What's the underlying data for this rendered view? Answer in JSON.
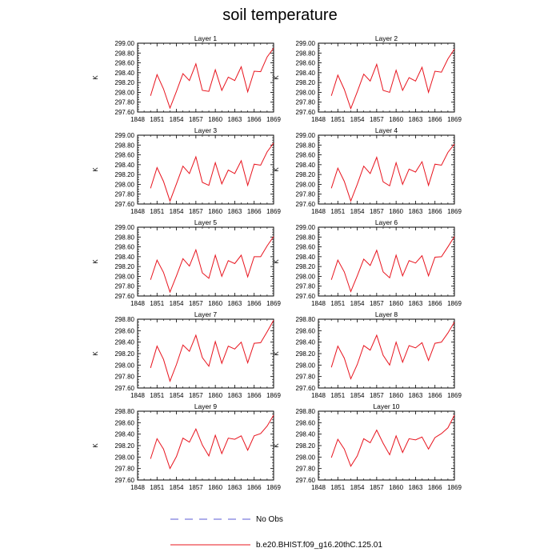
{
  "page_title": "soil temperature",
  "chart_data": {
    "type": "line",
    "xlabel": "",
    "ylabel": "K",
    "xlim": [
      1848,
      1869
    ],
    "x_ticks": [
      1848,
      1851,
      1854,
      1857,
      1860,
      1863,
      1866,
      1869
    ],
    "x": [
      1850,
      1851,
      1852,
      1853,
      1854,
      1855,
      1856,
      1857,
      1858,
      1859,
      1860,
      1861,
      1862,
      1863,
      1864,
      1865,
      1866,
      1867,
      1868,
      1869
    ],
    "grid": false,
    "line_color": "#e8141e",
    "panels": [
      {
        "title": "Layer 1",
        "ylim": [
          297.6,
          299.0
        ],
        "y_ticks": [
          "297.60",
          "297.80",
          "298.00",
          "298.20",
          "298.40",
          "298.60",
          "298.80",
          "299.00"
        ],
        "values": [
          297.93,
          298.36,
          298.07,
          297.68,
          298.02,
          298.38,
          298.24,
          298.58,
          298.04,
          298.02,
          298.46,
          298.04,
          298.31,
          298.24,
          298.52,
          298.01,
          298.43,
          298.42,
          298.72,
          298.9
        ]
      },
      {
        "title": "Layer 2",
        "ylim": [
          297.6,
          299.0
        ],
        "y_ticks": [
          "297.60",
          "297.80",
          "298.00",
          "298.20",
          "298.40",
          "298.60",
          "298.80",
          "299.00"
        ],
        "values": [
          297.93,
          298.35,
          298.06,
          297.67,
          298.01,
          298.37,
          298.23,
          298.57,
          298.04,
          298.0,
          298.45,
          298.04,
          298.3,
          298.23,
          298.51,
          298.0,
          298.43,
          298.41,
          298.68,
          298.88
        ]
      },
      {
        "title": "Layer 3",
        "ylim": [
          297.6,
          299.0
        ],
        "y_ticks": [
          "297.60",
          "297.80",
          "298.00",
          "298.20",
          "298.40",
          "298.60",
          "298.80",
          "299.00"
        ],
        "values": [
          297.92,
          298.34,
          298.06,
          297.66,
          298.01,
          298.37,
          298.22,
          298.56,
          298.04,
          297.98,
          298.44,
          298.01,
          298.29,
          298.22,
          298.48,
          297.98,
          298.41,
          298.39,
          298.66,
          298.84
        ]
      },
      {
        "title": "Layer 4",
        "ylim": [
          297.6,
          299.0
        ],
        "y_ticks": [
          "297.60",
          "297.80",
          "298.00",
          "298.20",
          "298.40",
          "298.60",
          "298.80",
          "299.00"
        ],
        "values": [
          297.92,
          298.33,
          298.06,
          297.66,
          298.0,
          298.37,
          298.22,
          298.55,
          298.05,
          297.97,
          298.44,
          298.0,
          298.31,
          298.25,
          298.46,
          297.98,
          298.41,
          298.39,
          298.65,
          298.82
        ]
      },
      {
        "title": "Layer 5",
        "ylim": [
          297.6,
          299.0
        ],
        "y_ticks": [
          "297.60",
          "297.80",
          "298.00",
          "298.20",
          "298.40",
          "298.60",
          "298.80",
          "299.00"
        ],
        "values": [
          297.93,
          298.33,
          298.08,
          297.68,
          298.01,
          298.36,
          298.21,
          298.54,
          298.07,
          297.96,
          298.43,
          298.0,
          298.32,
          298.26,
          298.43,
          297.99,
          298.4,
          298.4,
          298.62,
          298.81
        ]
      },
      {
        "title": "Layer 6",
        "ylim": [
          297.6,
          299.0
        ],
        "y_ticks": [
          "297.60",
          "297.80",
          "298.00",
          "298.20",
          "298.40",
          "298.60",
          "298.80",
          "299.00"
        ],
        "values": [
          297.93,
          298.33,
          298.09,
          297.69,
          298.01,
          298.35,
          298.22,
          298.53,
          298.09,
          297.97,
          298.43,
          298.01,
          298.32,
          298.27,
          298.42,
          298.01,
          298.39,
          298.4,
          298.6,
          298.81
        ]
      },
      {
        "title": "Layer 7",
        "ylim": [
          297.6,
          298.8
        ],
        "y_ticks": [
          "297.60",
          "297.80",
          "298.00",
          "298.20",
          "298.40",
          "298.60",
          "298.80"
        ],
        "values": [
          297.95,
          298.33,
          298.1,
          297.72,
          298.01,
          298.35,
          298.24,
          298.52,
          298.13,
          297.98,
          298.41,
          298.03,
          298.33,
          298.28,
          298.4,
          298.04,
          298.38,
          298.39,
          298.58,
          298.78
        ]
      },
      {
        "title": "Layer 8",
        "ylim": [
          297.6,
          298.8
        ],
        "y_ticks": [
          "297.60",
          "297.80",
          "298.00",
          "298.20",
          "298.40",
          "298.60",
          "298.80"
        ],
        "values": [
          297.96,
          298.33,
          298.12,
          297.76,
          298.01,
          298.34,
          298.26,
          298.52,
          298.17,
          298.0,
          298.4,
          298.05,
          298.34,
          298.3,
          298.39,
          298.08,
          298.38,
          298.4,
          298.56,
          298.75
        ]
      },
      {
        "title": "Layer 9",
        "ylim": [
          297.6,
          298.8
        ],
        "y_ticks": [
          "297.60",
          "297.80",
          "298.00",
          "298.20",
          "298.40",
          "298.60",
          "298.80"
        ],
        "values": [
          297.97,
          298.32,
          298.14,
          297.8,
          298.01,
          298.33,
          298.26,
          298.49,
          298.21,
          298.02,
          298.38,
          298.06,
          298.33,
          298.31,
          298.37,
          298.12,
          298.37,
          298.41,
          298.54,
          298.73
        ]
      },
      {
        "title": "Layer 10",
        "ylim": [
          297.6,
          298.8
        ],
        "y_ticks": [
          "297.60",
          "297.80",
          "298.00",
          "298.20",
          "298.40",
          "298.60",
          "298.80"
        ],
        "values": [
          297.99,
          298.31,
          298.14,
          297.84,
          298.02,
          298.32,
          298.25,
          298.47,
          298.24,
          298.04,
          298.37,
          298.08,
          298.32,
          298.3,
          298.35,
          298.14,
          298.34,
          298.41,
          298.51,
          298.73
        ]
      }
    ],
    "legend_position": "bottom",
    "legend": [
      {
        "label": "No Obs",
        "style": "dashed",
        "color": "#5b5bd6"
      },
      {
        "label": "b.e20.BHIST.f09_g16.20thC.125.01",
        "style": "solid",
        "color": "#e8141e"
      }
    ]
  }
}
